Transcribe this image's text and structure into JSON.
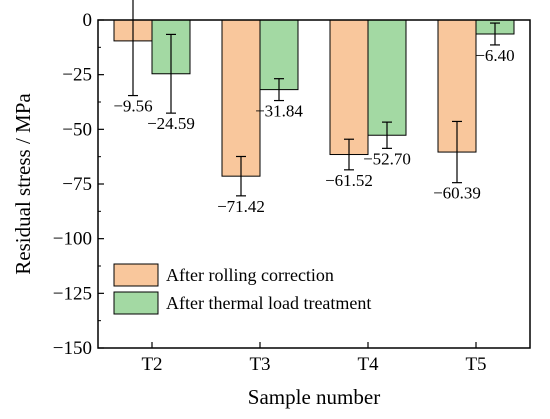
{
  "chart_data": {
    "type": "bar",
    "xlabel": "Sample number",
    "ylabel": "Residual stress / MPa",
    "categories": [
      "T2",
      "T3",
      "T4",
      "T5"
    ],
    "ylim": [
      -150,
      0
    ],
    "yticks": [
      0,
      -25,
      -50,
      -75,
      -100,
      -125,
      -150
    ],
    "ytick_labels": [
      "0",
      "−25",
      "−50",
      "−75",
      "−100",
      "−125",
      "−150"
    ],
    "legend_position": "lower-left",
    "series": [
      {
        "name": "After rolling correction",
        "color": "#f9c79c",
        "values": [
          -9.56,
          -71.42,
          -61.52,
          -60.39
        ],
        "errors": [
          25,
          9,
          7,
          14
        ],
        "labels": [
          "−9.56",
          "−71.42",
          "−61.52",
          "−60.39"
        ]
      },
      {
        "name": "After thermal load treatment",
        "color": "#a3d9a3",
        "values": [
          -24.59,
          -31.84,
          -52.7,
          -6.4
        ],
        "errors": [
          18,
          5,
          6,
          5
        ],
        "labels": [
          "−24.59",
          "−31.84",
          "−52.70",
          "−6.40"
        ]
      }
    ]
  }
}
